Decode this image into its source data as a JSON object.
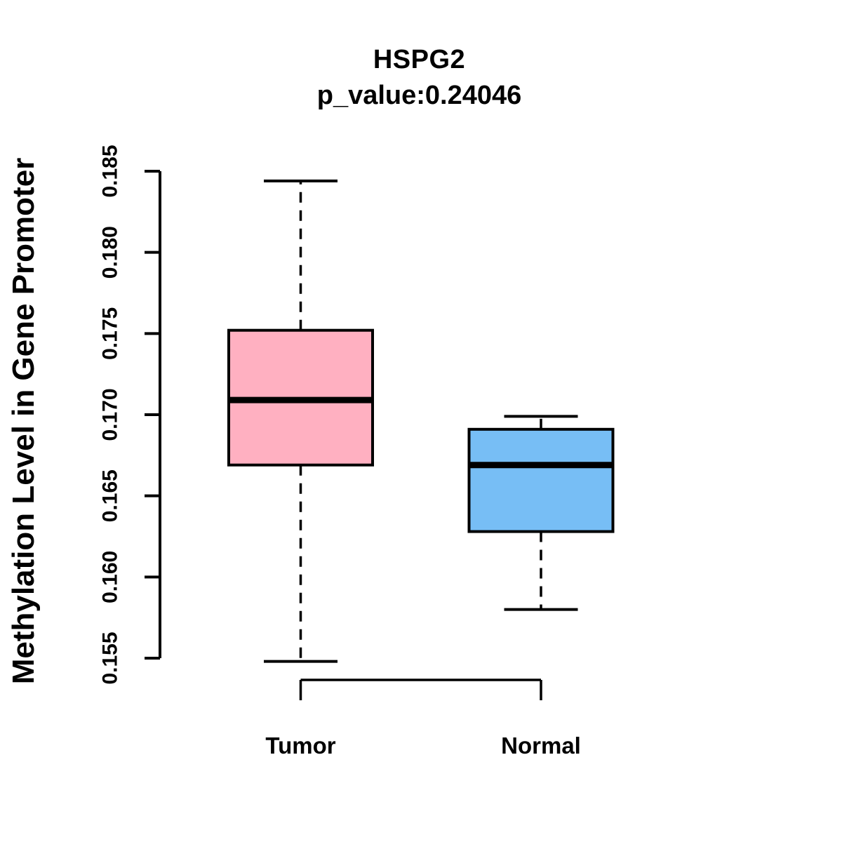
{
  "title": "HSPG2",
  "subtitle": "p_value:0.24046",
  "p_value": 0.24046,
  "ylabel": "Methylation Level in Gene Promoter",
  "chart_data": {
    "type": "boxplot",
    "title": "HSPG2",
    "subtitle": "p_value:0.24046",
    "ylabel": "Methylation Level in Gene Promoter",
    "xlabel": "",
    "categories": [
      "Tumor",
      "Normal"
    ],
    "series": [
      {
        "name": "Tumor",
        "whisker_low": 0.1548,
        "q1": 0.1669,
        "median": 0.1709,
        "q3": 0.1752,
        "whisker_high": 0.1844,
        "fill": "#FFB0C1"
      },
      {
        "name": "Normal",
        "whisker_low": 0.158,
        "q1": 0.1628,
        "median": 0.1669,
        "q3": 0.1691,
        "whisker_high": 0.1699,
        "fill": "#77BEF5"
      }
    ],
    "ylim": [
      0.155,
      0.185
    ],
    "yticks": [
      0.155,
      0.16,
      0.165,
      0.17,
      0.175,
      0.18,
      0.185
    ],
    "ytick_labels": [
      "0.155",
      "0.160",
      "0.165",
      "0.170",
      "0.175",
      "0.180",
      "0.185"
    ],
    "grid": "off",
    "legend": "none",
    "stroke_color": "#000000",
    "whisker_style": "dashed"
  }
}
